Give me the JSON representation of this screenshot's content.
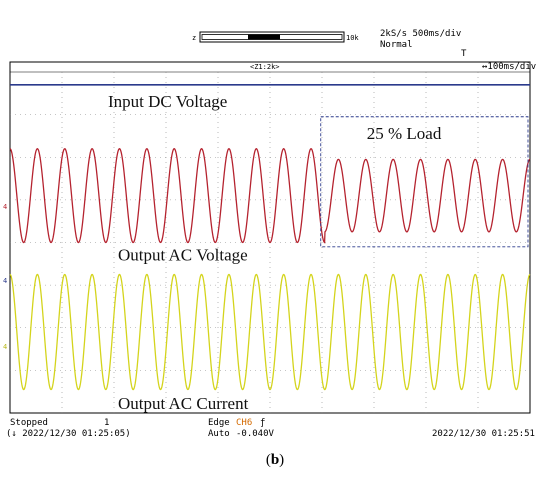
{
  "header": {
    "sample_rate": "2kS/s 500ms/div",
    "mode": "Normal",
    "zoom_marker_left": "z",
    "zoom_marker_right": "10k",
    "zoom_ratio": "<Z1:2k>",
    "zoom_timebase": "↔100ms/div",
    "trigger_glyph": "T"
  },
  "channels": {
    "ch_voltage_marker": "4",
    "ch_dc_marker": "4",
    "ch_current_marker": "4"
  },
  "footer": {
    "status": "Stopped",
    "record": "1",
    "trigger_type": "Edge",
    "trigger_source": "CH6",
    "trigger_edge_glyph": "ƒ",
    "trigger_mode": "Auto",
    "trigger_level": "-0.040V",
    "start_time": "(↓ 2022/12/30 01:25:05)",
    "end_time": "2022/12/30 01:25:51"
  },
  "caption": {
    "open": "(",
    "letter": "b",
    "close": ")"
  },
  "colors": {
    "dc": "#2b3a8c",
    "voltage": "#b5232f",
    "current": "#d4d41c",
    "grid": "#8c8c8c",
    "box": "#2b3a8c"
  },
  "chart_data": {
    "type": "line",
    "title": "",
    "xlabel": "",
    "ylabel": "",
    "x_divisions": 10,
    "y_divisions": 8,
    "cycles_shown": 19,
    "annotation": {
      "text": "25 % Load",
      "cycle_start": 11.5,
      "cycle_end": 19
    },
    "series": [
      {
        "name": "Input DC Voltage",
        "kind": "dc",
        "level_div": 7.7
      },
      {
        "name": "Output AC Voltage",
        "kind": "sine",
        "center_div": 5.1,
        "amplitude_div": 1.1,
        "amplitude_div_after_load": 0.85,
        "load_change_cycle": 11.5
      },
      {
        "name": "Output AC Current",
        "kind": "sine",
        "center_div": 1.9,
        "amplitude_div": 1.35
      }
    ]
  }
}
